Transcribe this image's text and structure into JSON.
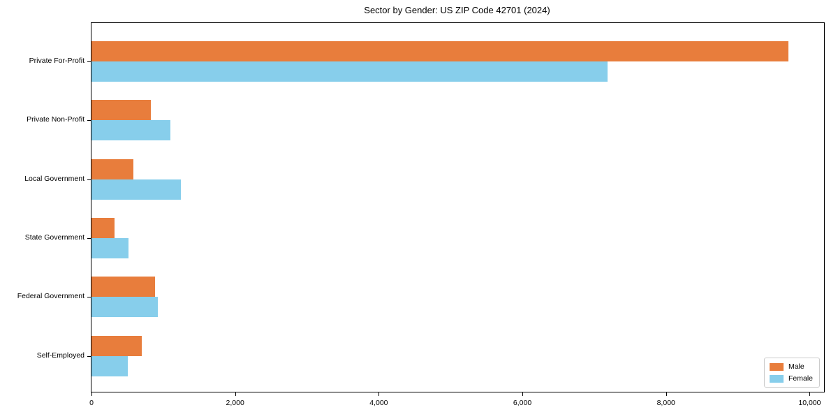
{
  "chart_data": {
    "type": "bar",
    "orientation": "horizontal",
    "title": "Sector by Gender: US ZIP Code 42701 (2024)",
    "categories": [
      "Private For-Profit",
      "Private Non-Profit",
      "Local Government",
      "State Government",
      "Federal Government",
      "Self-Employed"
    ],
    "series": [
      {
        "name": "Male",
        "color": "#E87D3C",
        "values": [
          9700,
          830,
          580,
          320,
          880,
          700
        ]
      },
      {
        "name": "Female",
        "color": "#87CEEB",
        "values": [
          7190,
          1100,
          1240,
          515,
          920,
          505
        ]
      }
    ],
    "xlabel": "",
    "ylabel": "",
    "xlim": [
      0,
      10200
    ],
    "xticks": [
      0,
      2000,
      4000,
      6000,
      8000,
      10000
    ],
    "xtick_labels": [
      "0",
      "2,000",
      "4,000",
      "6,000",
      "8,000",
      "10,000"
    ],
    "grid": false,
    "legend_position": "lower right",
    "axis_color": "#000000",
    "background_color": "#ffffff"
  }
}
